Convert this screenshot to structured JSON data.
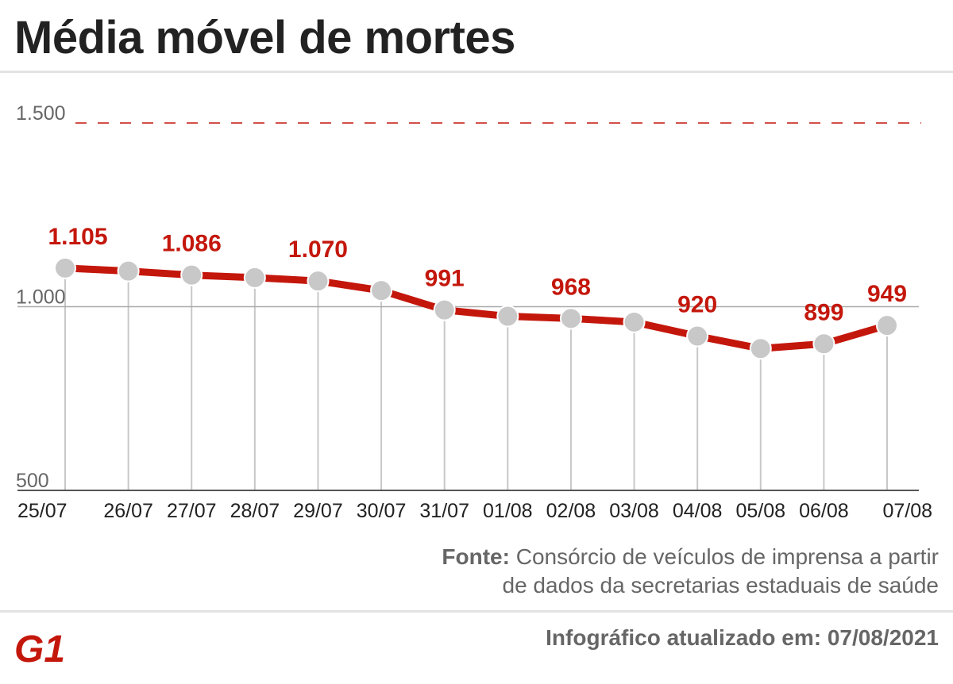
{
  "title": "Média móvel de mortes",
  "source": {
    "label": "Fonte:",
    "line1": "Consórcio de veículos de imprensa a partir",
    "line2": "de dados da secretarias estaduais de saúde"
  },
  "footer": {
    "logo_text": "G1",
    "updated": "Infográfico atualizado em: 07/08/2021"
  },
  "colors": {
    "line": "#c4170c",
    "marker": "#c8c8c8",
    "label": "#c4170c",
    "grid": "#c8c8c8",
    "axis": "#555555"
  },
  "chart_data": {
    "type": "line",
    "categories": [
      "25/07",
      "26/07",
      "27/07",
      "28/07",
      "29/07",
      "30/07",
      "31/07",
      "01/08",
      "02/08",
      "03/08",
      "04/08",
      "05/08",
      "06/08",
      "07/08"
    ],
    "series": [
      {
        "values": [
          1105,
          1097,
          1086,
          1079,
          1070,
          1044,
          991,
          974,
          968,
          958,
          920,
          886,
          899,
          949
        ]
      }
    ],
    "data_labels": [
      {
        "index": 0,
        "text": "1.105"
      },
      {
        "index": 2,
        "text": "1.086"
      },
      {
        "index": 4,
        "text": "1.070"
      },
      {
        "index": 6,
        "text": "991"
      },
      {
        "index": 8,
        "text": "968"
      },
      {
        "index": 10,
        "text": "920"
      },
      {
        "index": 12,
        "text": "899"
      },
      {
        "index": 13,
        "text": "949"
      }
    ],
    "yticks": [
      {
        "value": 500,
        "label": "500"
      },
      {
        "value": 1000,
        "label": "1.000"
      },
      {
        "value": 1500,
        "label": "1.500",
        "style": "dashed"
      }
    ],
    "ylim": [
      500,
      1500
    ],
    "grid": "vertical per category",
    "legend": "none",
    "xlabel": "",
    "ylabel": ""
  }
}
